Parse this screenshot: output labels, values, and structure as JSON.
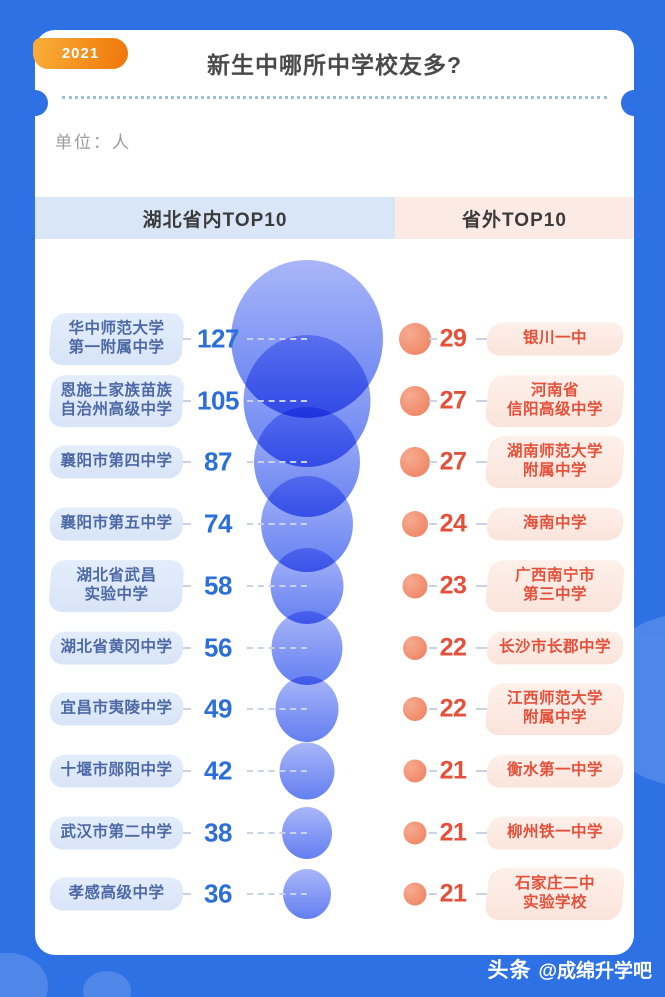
{
  "header": {
    "year_badge": "2021",
    "title": "新生中哪所中学校友多?",
    "unit_label": "单位：人"
  },
  "columns": {
    "left": {
      "label": "湖北省内TOP10"
    },
    "right": {
      "label": "省外TOP10"
    }
  },
  "watermark": {
    "brand": "头条",
    "handle": "@成绵升学吧"
  },
  "chart_data": {
    "type": "bubble",
    "title": "新生中哪所中学校友多?",
    "year": "2021",
    "unit": "人",
    "legend_position": "top",
    "series": [
      {
        "name": "湖北省内TOP10",
        "color": "#637ff1",
        "points": [
          {
            "rank": 1,
            "school": "华中师范大学第一附属中学",
            "label_lines": [
              "华中师范大学",
              "第一附属中学"
            ],
            "value": 127
          },
          {
            "rank": 2,
            "school": "恩施土家族苗族自治州高级中学",
            "label_lines": [
              "恩施土家族苗族",
              "自治州高级中学"
            ],
            "value": 105
          },
          {
            "rank": 3,
            "school": "襄阳市第四中学",
            "label_lines": [
              "襄阳市第四中学"
            ],
            "value": 87
          },
          {
            "rank": 4,
            "school": "襄阳市第五中学",
            "label_lines": [
              "襄阳市第五中学"
            ],
            "value": 74
          },
          {
            "rank": 5,
            "school": "湖北省武昌实验中学",
            "label_lines": [
              "湖北省武昌",
              "实验中学"
            ],
            "value": 58
          },
          {
            "rank": 6,
            "school": "湖北省黄冈中学",
            "label_lines": [
              "湖北省黄冈中学"
            ],
            "value": 56
          },
          {
            "rank": 7,
            "school": "宜昌市夷陵中学",
            "label_lines": [
              "宜昌市夷陵中学"
            ],
            "value": 49
          },
          {
            "rank": 8,
            "school": "十堰市郧阳中学",
            "label_lines": [
              "十堰市郧阳中学"
            ],
            "value": 42
          },
          {
            "rank": 9,
            "school": "武汉市第二中学",
            "label_lines": [
              "武汉市第二中学"
            ],
            "value": 38
          },
          {
            "rank": 10,
            "school": "孝感高级中学",
            "label_lines": [
              "孝感高级中学"
            ],
            "value": 36
          }
        ]
      },
      {
        "name": "省外TOP10",
        "color": "#ee7c5c",
        "points": [
          {
            "rank": 1,
            "school": "银川一中",
            "label_lines": [
              "银川一中"
            ],
            "value": 29
          },
          {
            "rank": 2,
            "school": "河南省信阳高级中学",
            "label_lines": [
              "河南省",
              "信阳高级中学"
            ],
            "value": 27
          },
          {
            "rank": 3,
            "school": "湖南师范大学附属中学",
            "label_lines": [
              "湖南师范大学",
              "附属中学"
            ],
            "value": 27
          },
          {
            "rank": 4,
            "school": "海南中学",
            "label_lines": [
              "海南中学"
            ],
            "value": 24
          },
          {
            "rank": 5,
            "school": "广西南宁市第三中学",
            "label_lines": [
              "广西南宁市",
              "第三中学"
            ],
            "value": 23
          },
          {
            "rank": 6,
            "school": "长沙市长郡中学",
            "label_lines": [
              "长沙市长郡中学"
            ],
            "value": 22
          },
          {
            "rank": 7,
            "school": "江西师范大学附属中学",
            "label_lines": [
              "江西师范大学",
              "附属中学"
            ],
            "value": 22
          },
          {
            "rank": 8,
            "school": "衡水第一中学",
            "label_lines": [
              "衡水第一中学"
            ],
            "value": 21
          },
          {
            "rank": 9,
            "school": "柳州铁一中学",
            "label_lines": [
              "柳州铁一中学"
            ],
            "value": 21
          },
          {
            "rank": 10,
            "school": "石家庄二中实验学校",
            "label_lines": [
              "石家庄二中",
              "实验学校"
            ],
            "value": 21
          }
        ]
      }
    ]
  },
  "colors": {
    "background": "#2e71e5",
    "card": "#ffffff",
    "badge_start": "#f9af38",
    "badge_end": "#f0760a",
    "title_text": "#4a4a4a",
    "sep_dots": "#9fc0d8",
    "unit_text": "#9b9b9b",
    "header_left_bg": "#d9e6f8",
    "header_right_bg": "#fcebe4",
    "header_text": "#3b3b3b",
    "left_pill_bg": "#d8e4f7",
    "left_pill_text": "#4d69a5",
    "left_number": "#2c6fd9",
    "bubble_top": "#a9b6f8",
    "bubble_bottom": "#637ff1",
    "dot_light": "#f7ab90",
    "dot_dark": "#ee7c5c",
    "right_number": "#e4503a",
    "right_pill_bg": "#fbe4db",
    "right_pill_text": "#e4503a",
    "dash": "#c7d2e2",
    "deco": "rgba(255,255,255,0.16)",
    "watermark_text": "#ffffff"
  }
}
